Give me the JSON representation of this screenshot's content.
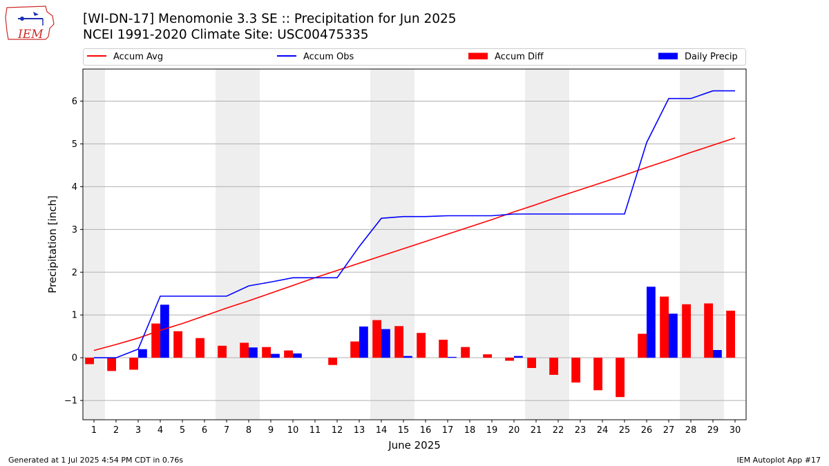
{
  "header": {
    "title_line1": "[WI-DN-17] Menomonie 3.3 SE :: Precipitation for Jun 2025",
    "title_line2": "NCEI 1991-2020 Climate Site: USC00475335",
    "logo_text": "IEM"
  },
  "footer": {
    "generated": "Generated at 1 Jul 2025 4:54 PM CDT in 0.76s",
    "app": "IEM Autoplot App #17"
  },
  "colors": {
    "accum_avg": "#ff0000",
    "accum_obs": "#0000ff",
    "accum_diff": "#ff0000",
    "daily_precip": "#0000ff",
    "weekend_shade": "#eeeeee",
    "grid": "#b0b0b0"
  },
  "chart_data": {
    "type": "bar",
    "xlabel": "June 2025",
    "ylabel": "Precipitation [inch]",
    "ylim": [
      -1.45,
      6.75
    ],
    "yticks": [
      -1,
      0,
      1,
      2,
      3,
      4,
      5,
      6
    ],
    "ytick_labels": [
      "−1",
      "0",
      "1",
      "2",
      "3",
      "4",
      "5",
      "6"
    ],
    "x": [
      1,
      2,
      3,
      4,
      5,
      6,
      7,
      8,
      9,
      10,
      11,
      12,
      13,
      14,
      15,
      16,
      17,
      18,
      19,
      20,
      21,
      22,
      23,
      24,
      25,
      26,
      27,
      28,
      29,
      30
    ],
    "weekend_shaded_days": [
      1,
      7,
      8,
      14,
      15,
      21,
      22,
      28,
      29
    ],
    "grid": "horizontal",
    "legend_position": "top",
    "series": [
      {
        "name": "Accum Avg",
        "kind": "line",
        "values": [
          0.17,
          0.31,
          0.46,
          0.64,
          0.8,
          0.98,
          1.16,
          1.33,
          1.51,
          1.69,
          1.87,
          2.04,
          2.21,
          2.38,
          2.55,
          2.72,
          2.89,
          3.06,
          3.23,
          3.41,
          3.58,
          3.76,
          3.93,
          4.1,
          4.27,
          4.45,
          4.62,
          4.8,
          4.97,
          5.14
        ]
      },
      {
        "name": "Accum Obs",
        "kind": "line",
        "values": [
          0.0,
          0.0,
          0.2,
          1.44,
          1.44,
          1.44,
          1.44,
          1.68,
          1.77,
          1.87,
          1.87,
          1.87,
          2.6,
          3.26,
          3.3,
          3.3,
          3.32,
          3.32,
          3.32,
          3.36,
          3.36,
          3.36,
          3.36,
          3.36,
          3.36,
          5.03,
          6.06,
          6.06,
          6.24,
          6.24
        ]
      },
      {
        "name": "Accum Diff",
        "kind": "bar",
        "values": [
          -0.15,
          -0.31,
          -0.28,
          0.8,
          0.62,
          0.46,
          0.28,
          0.35,
          0.25,
          0.17,
          0.0,
          -0.17,
          0.38,
          0.88,
          0.74,
          0.58,
          0.42,
          0.25,
          0.08,
          -0.07,
          -0.24,
          -0.4,
          -0.58,
          -0.76,
          -0.92,
          0.56,
          1.43,
          1.25,
          1.27,
          1.1
        ]
      },
      {
        "name": "Daily Precip",
        "kind": "bar",
        "values": [
          0.0,
          0.0,
          0.2,
          1.24,
          0.0,
          0.0,
          0.0,
          0.24,
          0.09,
          0.1,
          0.0,
          0.0,
          0.73,
          0.67,
          0.04,
          0.0,
          0.02,
          0.0,
          0.0,
          0.04,
          0.0,
          0.0,
          0.0,
          0.0,
          0.0,
          1.66,
          1.03,
          0.0,
          0.18,
          0.0
        ]
      }
    ]
  }
}
